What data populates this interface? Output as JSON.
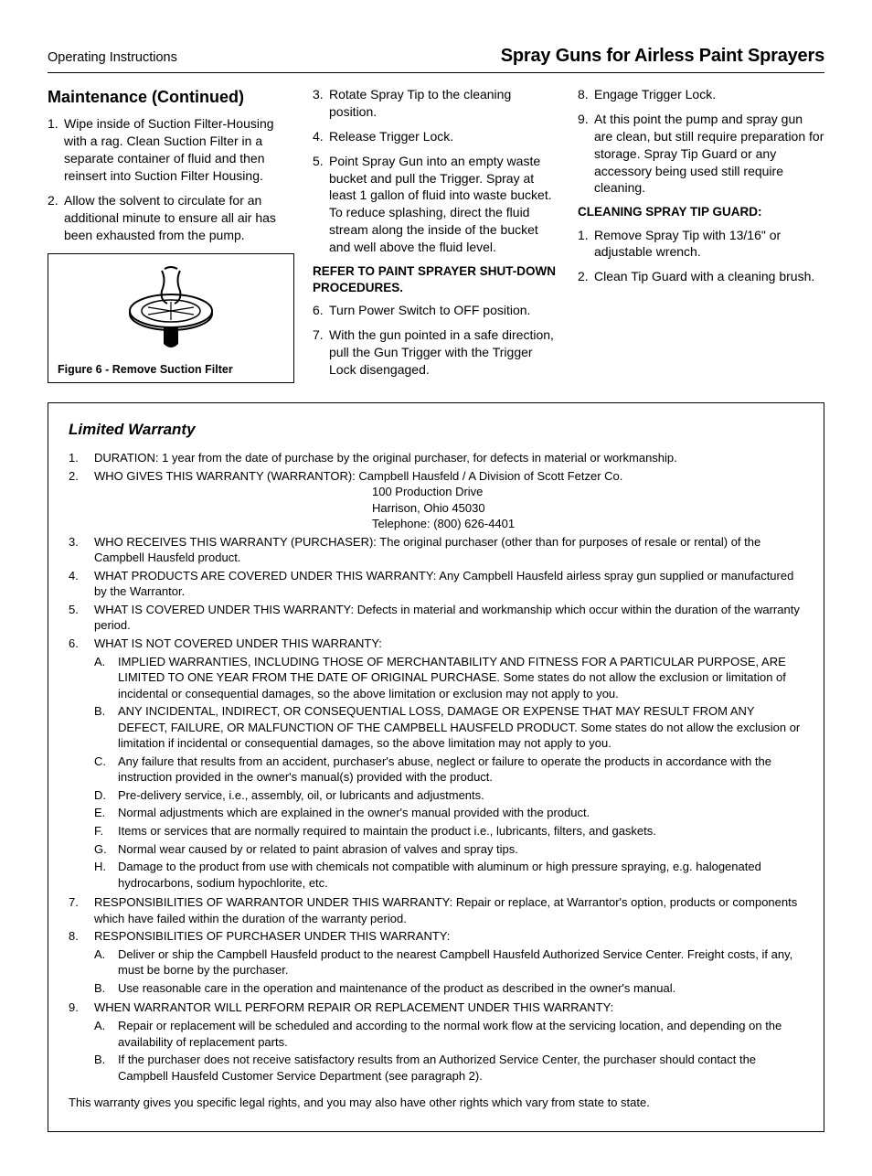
{
  "header": {
    "left": "Operating Instructions",
    "right": "Spray Guns for Airless Paint Sprayers"
  },
  "maintenance": {
    "title": "Maintenance (Continued)",
    "col1_items": [
      {
        "n": "1.",
        "t": "Wipe inside of Suction Filter-Housing with a rag. Clean Suction Filter in a separate container of fluid and then reinsert into Suction Filter Housing."
      },
      {
        "n": "2.",
        "t": "Allow the solvent to circulate for an additional  minute to ensure all air has been exhausted from the pump."
      }
    ],
    "figure_caption": "Figure 6 - Remove Suction Filter",
    "col2_items_a": [
      {
        "n": "3.",
        "t": "Rotate Spray Tip to the cleaning position."
      },
      {
        "n": "4.",
        "t": "Release Trigger Lock."
      },
      {
        "n": "5.",
        "t": "Point Spray Gun into an empty waste bucket and pull the Trigger. Spray at least 1 gallon of fluid into waste bucket. To reduce splashing, direct the fluid stream along the inside of the bucket and well above the fluid level."
      }
    ],
    "col2_sub": "REFER TO PAINT SPRAYER SHUT-DOWN PROCEDURES.",
    "col2_items_b": [
      {
        "n": "6.",
        "t": "Turn Power Switch to OFF position."
      },
      {
        "n": "7.",
        "t": "With the gun pointed in a safe direction, pull the Gun Trigger with the Trigger Lock disengaged."
      }
    ],
    "col3_items_a": [
      {
        "n": "8.",
        "t": "Engage Trigger Lock."
      },
      {
        "n": "9.",
        "t": "At this point the pump and spray gun are clean, but still require preparation for storage. Spray Tip Guard or  any accessory being used  still require cleaning."
      }
    ],
    "col3_sub": "CLEANING SPRAY TIP GUARD:",
    "col3_items_b": [
      {
        "n": "1.",
        "t": "Remove Spray Tip  with 13/16\" or adjustable  wrench."
      },
      {
        "n": "2.",
        "t": "Clean Tip Guard with a cleaning brush."
      }
    ]
  },
  "warranty": {
    "title": "Limited Warranty",
    "items": [
      {
        "n": "1.",
        "body": "DURATION: 1 year from the date of purchase by the original purchaser, for defects in material or workmanship."
      },
      {
        "n": "2.",
        "body": "WHO GIVES THIS WARRANTY (WARRANTOR):",
        "addr": [
          "Campbell Hausfeld / A Division of Scott Fetzer Co.",
          "100 Production Drive",
          "Harrison, Ohio  45030",
          "Telephone: (800) 626-4401"
        ]
      },
      {
        "n": "3.",
        "body": "WHO RECEIVES THIS WARRANTY (PURCHASER): The original purchaser (other than for purposes of resale or rental) of the Campbell Hausfeld product."
      },
      {
        "n": "4.",
        "body": "WHAT PRODUCTS ARE COVERED UNDER THIS WARRANTY: Any Campbell Hausfeld airless spray gun supplied or manufactured by the Warrantor."
      },
      {
        "n": "5.",
        "body": "WHAT IS COVERED UNDER THIS WARRANTY: Defects in material and workmanship which occur within the duration of the warranty period."
      },
      {
        "n": "6.",
        "body": "WHAT IS NOT COVERED UNDER THIS WARRANTY:",
        "sub": [
          {
            "l": "A.",
            "t": "IMPLIED WARRANTIES, INCLUDING THOSE OF MERCHANTABILITY AND FITNESS FOR A PARTICULAR PURPOSE, ARE LIMITED TO ONE YEAR FROM THE DATE OF ORIGINAL PURCHASE. Some states do not allow the exclusion or limitation of incidental or consequential damages, so the above limitation or exclusion may not apply to you."
          },
          {
            "l": "B.",
            "t": "ANY INCIDENTAL, INDIRECT, OR CONSEQUENTIAL LOSS, DAMAGE OR EXPENSE THAT MAY RESULT FROM ANY DEFECT, FAILURE, OR MALFUNCTION OF THE CAMPBELL HAUSFELD PRODUCT. Some states do not allow the exclusion or limitation if incidental or consequential damages, so the above limitation may not apply to you."
          },
          {
            "l": "C.",
            "t": "Any failure that results from an accident, purchaser's abuse, neglect or failure to operate the products in accordance with the instruction provided in the owner's manual(s) provided with the product."
          },
          {
            "l": "D.",
            "t": "Pre-delivery service, i.e., assembly, oil, or lubricants and adjustments."
          },
          {
            "l": "E.",
            "t": "Normal adjustments which are explained in the owner's manual provided with the product."
          },
          {
            "l": "F.",
            "t": "Items or services that are normally required to maintain the product i.e., lubricants, filters, and gaskets."
          },
          {
            "l": "G.",
            "t": "Normal wear caused by or related to paint abrasion of valves and spray tips."
          },
          {
            "l": "H.",
            "t": "Damage to the product from use with chemicals not compatible with aluminum or high pressure spraying, e.g. halogenated hydrocarbons, sodium hypochlorite, etc."
          }
        ]
      },
      {
        "n": "7.",
        "body": "RESPONSIBILITIES OF WARRANTOR UNDER THIS WARRANTY: Repair or replace, at Warrantor's option, products or components which have failed within the duration of the warranty period."
      },
      {
        "n": "8.",
        "body": "RESPONSIBILITIES OF PURCHASER UNDER THIS WARRANTY:",
        "sub": [
          {
            "l": "A.",
            "t": "Deliver or ship the Campbell Hausfeld product to the nearest Campbell Hausfeld Authorized Service Center. Freight costs, if any, must be borne by the purchaser."
          },
          {
            "l": "B.",
            "t": "Use reasonable care in the operation and maintenance of the product as described in the owner's manual."
          }
        ]
      },
      {
        "n": "9.",
        "body": "WHEN WARRANTOR WILL PERFORM REPAIR OR REPLACEMENT UNDER THIS WARRANTY:",
        "sub": [
          {
            "l": "A.",
            "t": "Repair or replacement will be scheduled and according to the normal work flow at the servicing location, and depending on the availability of replacement parts."
          },
          {
            "l": "B.",
            "t": "If the purchaser does not receive satisfactory results from an Authorized Service Center, the purchaser should contact the Campbell Hausfeld Customer Service Department (see paragraph 2)."
          }
        ]
      }
    ],
    "final": "This warranty gives you specific legal rights, and you may also have other rights which vary from state to state."
  },
  "figure_svg": {
    "width": 120,
    "height": 110,
    "stroke": "#000000",
    "fill": "#ffffff"
  }
}
